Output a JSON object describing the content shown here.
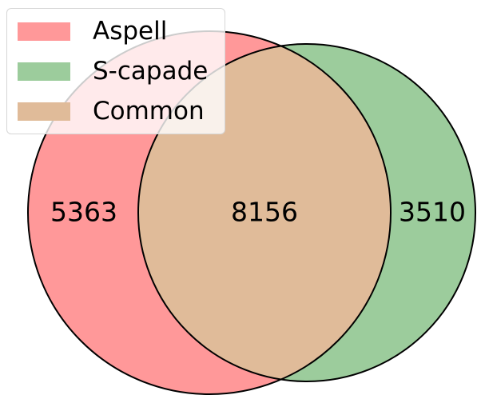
{
  "sets": [
    {
      "label": "Aspell",
      "color": "#ff9899"
    },
    {
      "label": "S-capade",
      "color": "#9ccc9c"
    },
    {
      "label": "Common",
      "color": "#e0bb99"
    }
  ],
  "regions": {
    "aspell_only": "5363",
    "common": "8156",
    "scapade_only": "3510"
  },
  "chart_data": {
    "type": "venn",
    "sets": [
      "Aspell",
      "S-capade"
    ],
    "values": {
      "Aspell only": 5363,
      "Common": 8156,
      "S-capade only": 3510
    }
  }
}
